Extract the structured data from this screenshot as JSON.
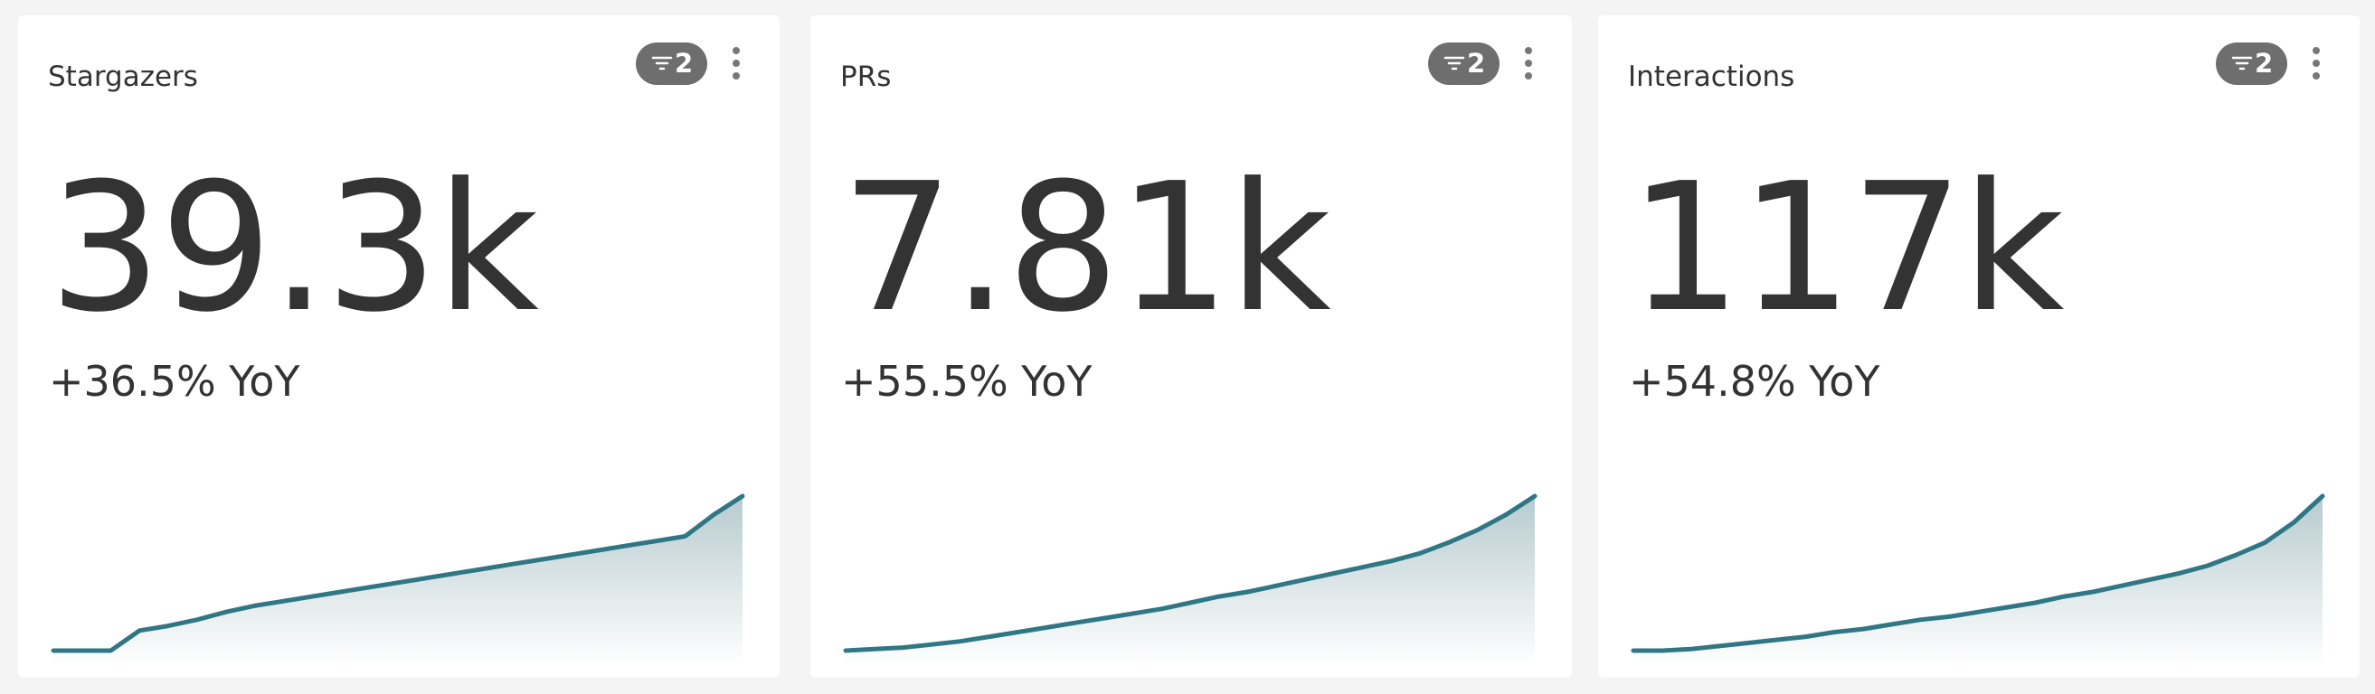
{
  "cards": [
    {
      "title": "Stargazers",
      "filter_count": 2,
      "value": "39.3k",
      "change": "+36.5% YoY",
      "sparkline": [
        0,
        0,
        0,
        13,
        16,
        20,
        25,
        29,
        32,
        35,
        38,
        41,
        44,
        47,
        50,
        53,
        56,
        59,
        62,
        65,
        68,
        71,
        74,
        88,
        100
      ]
    },
    {
      "title": "PRs",
      "filter_count": 2,
      "value": "7.81k",
      "change": "+55.5% YoY",
      "sparkline": [
        0,
        1,
        2,
        4,
        6,
        9,
        12,
        15,
        18,
        21,
        24,
        27,
        31,
        35,
        38,
        42,
        46,
        50,
        54,
        58,
        63,
        70,
        78,
        88,
        100
      ]
    },
    {
      "title": "Interactions",
      "filter_count": 2,
      "value": "117k",
      "change": "+54.8% YoY",
      "sparkline": [
        0,
        0,
        1,
        3,
        5,
        7,
        9,
        12,
        14,
        17,
        20,
        22,
        25,
        28,
        31,
        35,
        38,
        42,
        46,
        50,
        55,
        62,
        70,
        83,
        100
      ]
    }
  ]
}
